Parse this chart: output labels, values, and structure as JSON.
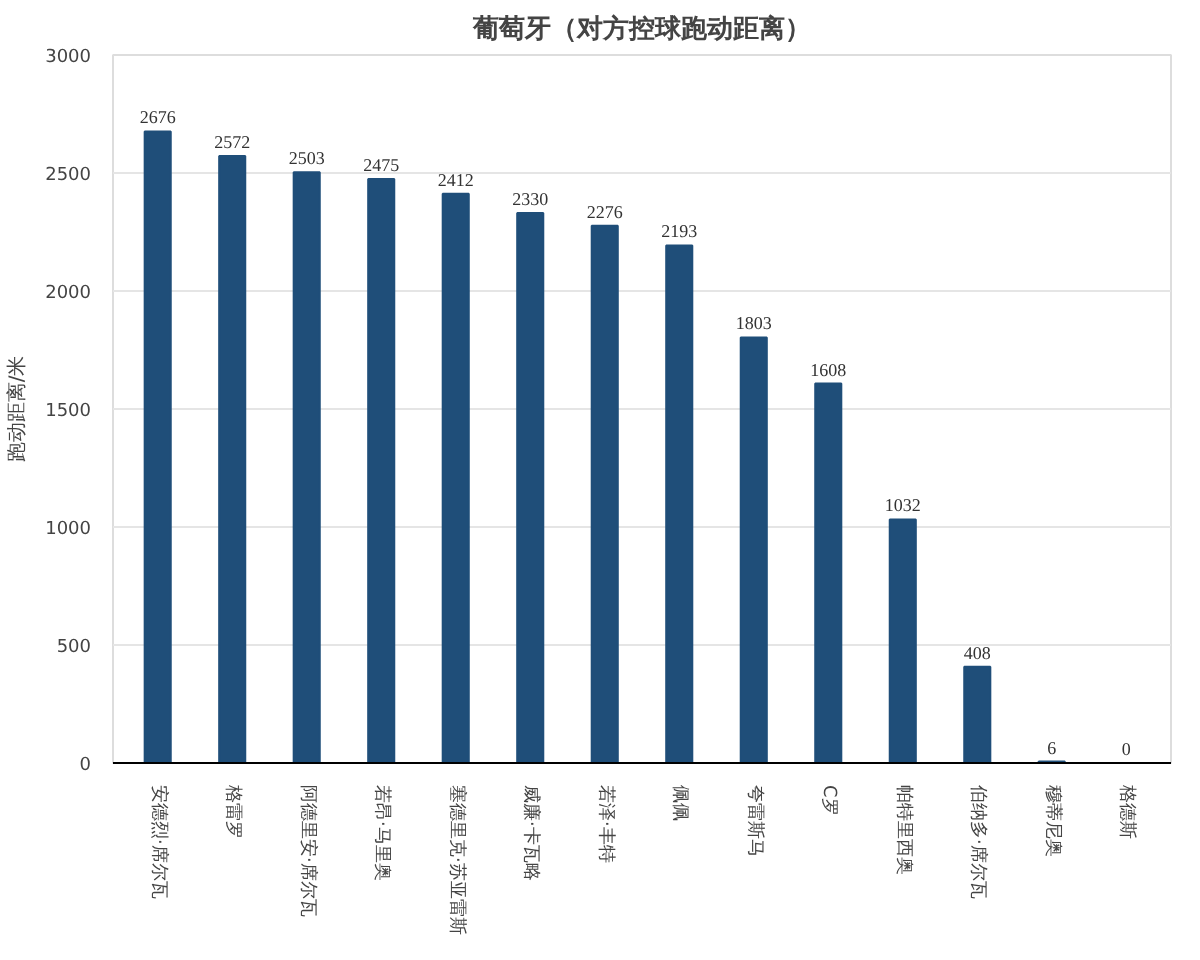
{
  "chart_data": {
    "type": "bar",
    "title": "葡萄牙（对方控球跑动距离）",
    "ylabel": "跑动距离/米",
    "categories": [
      "安德烈·席尔瓦",
      "格雷罗",
      "阿德里安·席尔瓦",
      "若昂·马里奥",
      "塞德里克·苏亚雷斯",
      "威廉·卡瓦略",
      "若泽·丰特",
      "佩佩",
      "夸雷斯马",
      "C罗",
      "帕特里西奥",
      "伯纳多·席尔瓦",
      "穆蒂尼奥",
      "格德斯"
    ],
    "values": [
      2676,
      2572,
      2503,
      2475,
      2412,
      2330,
      2276,
      2193,
      1803,
      1608,
      1032,
      408,
      6,
      0
    ],
    "color": "#1f4e79",
    "ylim": [
      0,
      3000
    ],
    "yticks": [
      0,
      500,
      1000,
      1500,
      2000,
      2500,
      3000
    ],
    "grid": "y",
    "data_labels": true
  }
}
